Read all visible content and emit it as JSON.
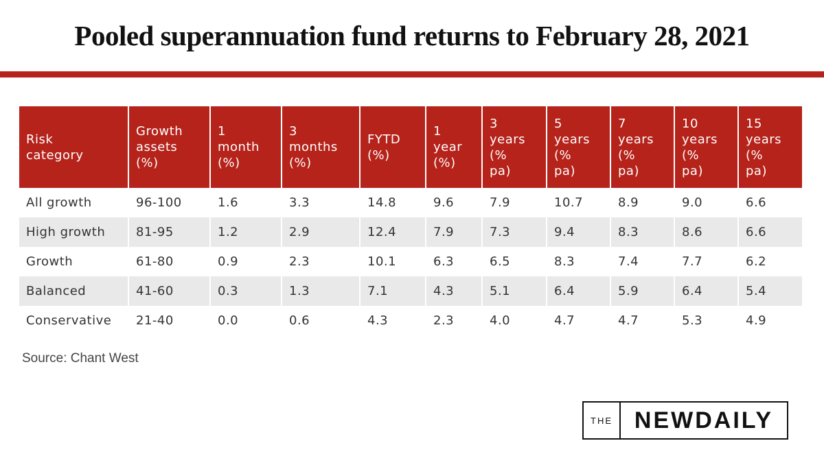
{
  "title": "Pooled superannuation fund returns to February 28, 2021",
  "table": {
    "header": [
      "Risk category",
      "Growth assets (%)",
      "1 month (%)",
      "3 months (%)",
      "FYTD (%)",
      "1 year (%)",
      "3 years (% pa)",
      "5 years (% pa)",
      "7 years (% pa)",
      "10 years (% pa)",
      "15 years (% pa)"
    ],
    "rows": [
      [
        "All growth",
        "96-100",
        "1.6",
        "3.3",
        "14.8",
        "9.6",
        "7.9",
        "10.7",
        "8.9",
        "9.0",
        "6.6"
      ],
      [
        "High growth",
        "81-95",
        "1.2",
        "2.9",
        "12.4",
        "7.9",
        "7.3",
        "9.4",
        "8.3",
        "8.6",
        "6.6"
      ],
      [
        "Growth",
        "61-80",
        "0.9",
        "2.3",
        "10.1",
        "6.3",
        "6.5",
        "8.3",
        "7.4",
        "7.7",
        "6.2"
      ],
      [
        "Balanced",
        "41-60",
        "0.3",
        "1.3",
        "7.1",
        "4.3",
        "5.1",
        "6.4",
        "5.9",
        "6.4",
        "5.4"
      ],
      [
        "Conservative",
        "21-40",
        "0.0",
        "0.6",
        "4.3",
        "2.3",
        "4.0",
        "4.7",
        "4.7",
        "5.3",
        "4.9"
      ]
    ]
  },
  "source": "Source: Chant West",
  "logo": {
    "prefix": "THE",
    "name": "NEWDAILY"
  }
}
